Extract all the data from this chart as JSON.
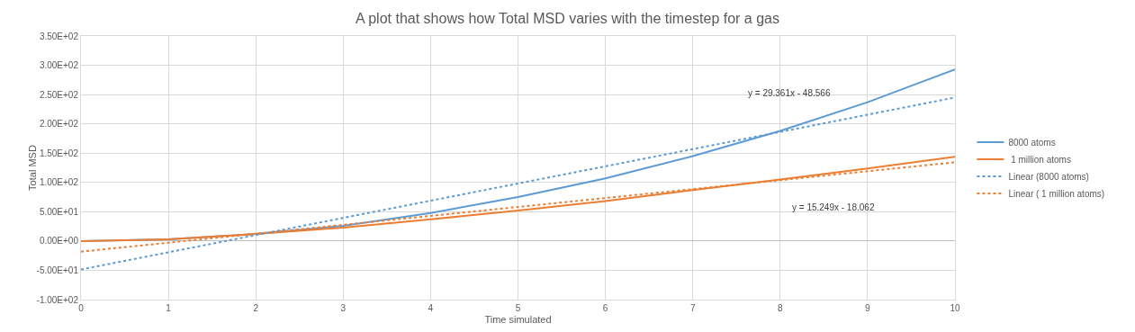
{
  "chart_data": {
    "type": "line",
    "title": "A plot that shows how Total MSD varies with the timestep for a gas",
    "xlabel": "Time simulated",
    "ylabel": "Total MSD",
    "xlim": [
      0,
      10
    ],
    "xticks": [
      0,
      1,
      2,
      3,
      4,
      5,
      6,
      7,
      8,
      9,
      10
    ],
    "ylim": [
      -100,
      350
    ],
    "yticks": [
      {
        "value": -100,
        "label": "-1.00E+02"
      },
      {
        "value": -50,
        "label": "-5.00E+01"
      },
      {
        "value": 0,
        "label": "0.00E+00"
      },
      {
        "value": 50,
        "label": "5.00E+01"
      },
      {
        "value": 100,
        "label": "1.00E+02"
      },
      {
        "value": 150,
        "label": "1.50E+02"
      },
      {
        "value": 200,
        "label": "2.00E+02"
      },
      {
        "value": 250,
        "label": "2.50E+02"
      },
      {
        "value": 300,
        "label": "3.00E+02"
      },
      {
        "value": 350,
        "label": "3.50E+02"
      }
    ],
    "grid": true,
    "legend": "right",
    "marker": "none",
    "series": [
      {
        "name": "8000 atoms",
        "color": "#5b9bd5",
        "line_style": "solid",
        "x": [
          0,
          1,
          2,
          3,
          4,
          5,
          6,
          7,
          8,
          9,
          10
        ],
        "values": [
          0,
          3,
          12,
          26,
          48,
          75,
          107,
          145,
          188,
          237,
          293
        ]
      },
      {
        "name": " 1 million atoms",
        "color": "#ed7d31",
        "line_style": "solid",
        "x": [
          0,
          1,
          2,
          3,
          4,
          5,
          6,
          7,
          8,
          9,
          10
        ],
        "values": [
          0,
          3,
          12,
          23,
          37,
          52,
          68,
          87,
          105,
          124,
          144
        ]
      },
      {
        "name": "Linear (8000 atoms)",
        "color": "#5b9bd5",
        "line_style": "dotted",
        "x": [
          0,
          10
        ],
        "values": [
          -48.6,
          245.0
        ]
      },
      {
        "name": "Linear ( 1 million atoms)",
        "color": "#ed7d31",
        "line_style": "dotted",
        "x": [
          0,
          10
        ],
        "values": [
          -18.1,
          134.4
        ]
      }
    ],
    "annotations": [
      "y = 29.361x - 48.566",
      "y = 15.249x - 18.062"
    ]
  }
}
